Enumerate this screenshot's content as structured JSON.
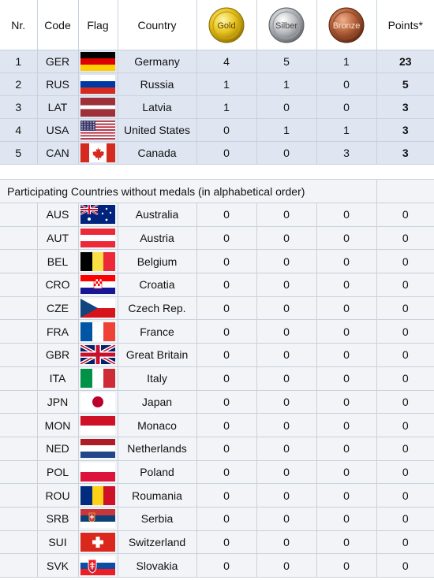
{
  "header": {
    "nr": "Nr.",
    "code": "Code",
    "flag": "Flag",
    "country": "Country",
    "gold": "Gold",
    "silver": "Silber",
    "bronze": "Bronze",
    "points": "Points*"
  },
  "colors": {
    "medal_row_bg": "#dfe6f1",
    "plain_row_bg": "#f2f4f7",
    "border": "#c8d2dc"
  },
  "medalists": [
    {
      "nr": "1",
      "code": "GER",
      "flag": "germany-flag-icon",
      "country": "Germany",
      "gold": "4",
      "silver": "5",
      "bronze": "1",
      "points": "23"
    },
    {
      "nr": "2",
      "code": "RUS",
      "flag": "russia-flag-icon",
      "country": "Russia",
      "gold": "1",
      "silver": "1",
      "bronze": "0",
      "points": "5"
    },
    {
      "nr": "3",
      "code": "LAT",
      "flag": "latvia-flag-icon",
      "country": "Latvia",
      "gold": "1",
      "silver": "0",
      "bronze": "0",
      "points": "3"
    },
    {
      "nr": "4",
      "code": "USA",
      "flag": "usa-flag-icon",
      "country": "United States",
      "gold": "0",
      "silver": "1",
      "bronze": "1",
      "points": "3"
    },
    {
      "nr": "5",
      "code": "CAN",
      "flag": "canada-flag-icon",
      "country": "Canada",
      "gold": "0",
      "silver": "0",
      "bronze": "3",
      "points": "3"
    }
  ],
  "section_title": "Participating Countries without medals (in alphabetical order)",
  "others": [
    {
      "code": "AUS",
      "flag": "australia-flag-icon",
      "country": "Australia",
      "gold": "0",
      "silver": "0",
      "bronze": "0",
      "points": "0"
    },
    {
      "code": "AUT",
      "flag": "austria-flag-icon",
      "country": "Austria",
      "gold": "0",
      "silver": "0",
      "bronze": "0",
      "points": "0"
    },
    {
      "code": "BEL",
      "flag": "belgium-flag-icon",
      "country": "Belgium",
      "gold": "0",
      "silver": "0",
      "bronze": "0",
      "points": "0"
    },
    {
      "code": "CRO",
      "flag": "croatia-flag-icon",
      "country": "Croatia",
      "gold": "0",
      "silver": "0",
      "bronze": "0",
      "points": "0"
    },
    {
      "code": "CZE",
      "flag": "czech-flag-icon",
      "country": "Czech Rep.",
      "gold": "0",
      "silver": "0",
      "bronze": "0",
      "points": "0"
    },
    {
      "code": "FRA",
      "flag": "france-flag-icon",
      "country": "France",
      "gold": "0",
      "silver": "0",
      "bronze": "0",
      "points": "0"
    },
    {
      "code": "GBR",
      "flag": "great-britain-flag-icon",
      "country": "Great Britain",
      "gold": "0",
      "silver": "0",
      "bronze": "0",
      "points": "0"
    },
    {
      "code": "ITA",
      "flag": "italy-flag-icon",
      "country": "Italy",
      "gold": "0",
      "silver": "0",
      "bronze": "0",
      "points": "0"
    },
    {
      "code": "JPN",
      "flag": "japan-flag-icon",
      "country": "Japan",
      "gold": "0",
      "silver": "0",
      "bronze": "0",
      "points": "0"
    },
    {
      "code": "MON",
      "flag": "monaco-flag-icon",
      "country": "Monaco",
      "gold": "0",
      "silver": "0",
      "bronze": "0",
      "points": "0"
    },
    {
      "code": "NED",
      "flag": "netherlands-flag-icon",
      "country": "Netherlands",
      "gold": "0",
      "silver": "0",
      "bronze": "0",
      "points": "0"
    },
    {
      "code": "POL",
      "flag": "poland-flag-icon",
      "country": "Poland",
      "gold": "0",
      "silver": "0",
      "bronze": "0",
      "points": "0"
    },
    {
      "code": "ROU",
      "flag": "romania-flag-icon",
      "country": "Roumania",
      "gold": "0",
      "silver": "0",
      "bronze": "0",
      "points": "0"
    },
    {
      "code": "SRB",
      "flag": "serbia-flag-icon",
      "country": "Serbia",
      "gold": "0",
      "silver": "0",
      "bronze": "0",
      "points": "0"
    },
    {
      "code": "SUI",
      "flag": "switzerland-flag-icon",
      "country": "Switzerland",
      "gold": "0",
      "silver": "0",
      "bronze": "0",
      "points": "0"
    },
    {
      "code": "SVK",
      "flag": "slovakia-flag-icon",
      "country": "Slovakia",
      "gold": "0",
      "silver": "0",
      "bronze": "0",
      "points": "0"
    }
  ]
}
